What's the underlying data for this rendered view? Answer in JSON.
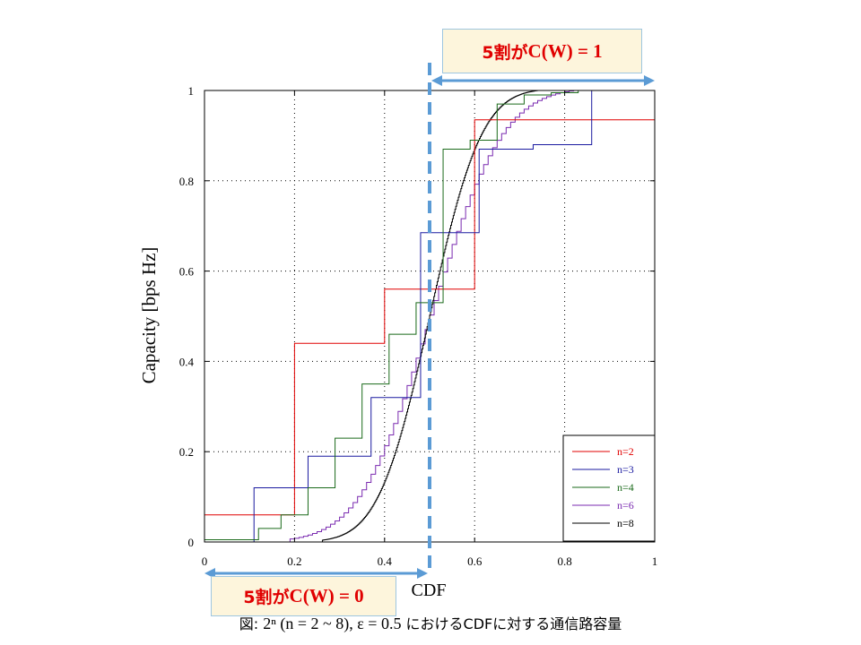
{
  "callout_top": {
    "prefix": "5割が",
    "formula": "C(W) = 1"
  },
  "callout_bottom": {
    "prefix": "5割が",
    "formula": "C(W) = 0"
  },
  "caption": {
    "prefix": "図: ",
    "formula": "2ⁿ (n = 2 ~ 8), ε = 0.5",
    "suffix": " におけるCDFに対する通信路容量"
  },
  "colors": {
    "n2": "#e00000",
    "n3": "#1a1aa0",
    "n4": "#1a6a1a",
    "n6": "#7a2ab0",
    "n8": "#000000",
    "marker": "#5b9bd5",
    "axis": "#000000"
  },
  "chart_data": {
    "type": "line",
    "xlabel": "CDF",
    "ylabel": "Capacity [bps Hz]",
    "xlim": [
      0,
      1
    ],
    "ylim": [
      0,
      1
    ],
    "x_ticks": [
      "0",
      "0.2",
      "0.4",
      "0.6",
      "0.8",
      "1"
    ],
    "y_ticks": [
      "0",
      "0.2",
      "0.4",
      "0.6",
      "0.8",
      "1"
    ],
    "grid": true,
    "legend_position": "bottom-right",
    "threshold_x": 0.5,
    "series": [
      {
        "name": "n=2",
        "color": "#e00000",
        "x": [
          0,
          0.2,
          0.4,
          0.6,
          1.0
        ],
        "y": [
          0.06,
          0.44,
          0.56,
          0.935,
          0.935
        ]
      },
      {
        "name": "n=3",
        "color": "#1a1aa0",
        "x": [
          0,
          0.11,
          0.23,
          0.37,
          0.48,
          0.61,
          0.73,
          0.86,
          1.0
        ],
        "y": [
          0,
          0.12,
          0.19,
          0.32,
          0.685,
          0.87,
          0.88,
          1.0,
          1.0
        ]
      },
      {
        "name": "n=4",
        "color": "#1a6a1a",
        "x": [
          0,
          0.12,
          0.17,
          0.23,
          0.29,
          0.35,
          0.41,
          0.47,
          0.53,
          0.59,
          0.65,
          0.71,
          0.77,
          0.83,
          1.0
        ],
        "y": [
          0.005,
          0.03,
          0.06,
          0.12,
          0.23,
          0.35,
          0.46,
          0.53,
          0.87,
          0.89,
          0.97,
          0.99,
          0.995,
          1.0,
          1.0
        ]
      }
    ],
    "generated_series": [
      {
        "name": "n=6",
        "color": "#7a2ab0",
        "steps": 64,
        "mean": 0.5,
        "sd": 0.125,
        "xmin": 0.18,
        "xmax": 0.82
      },
      {
        "name": "n=8",
        "color": "#000000",
        "steps": 256,
        "mean": 0.5,
        "sd": 0.09,
        "xmin": 0.26,
        "xmax": 0.74
      }
    ]
  }
}
